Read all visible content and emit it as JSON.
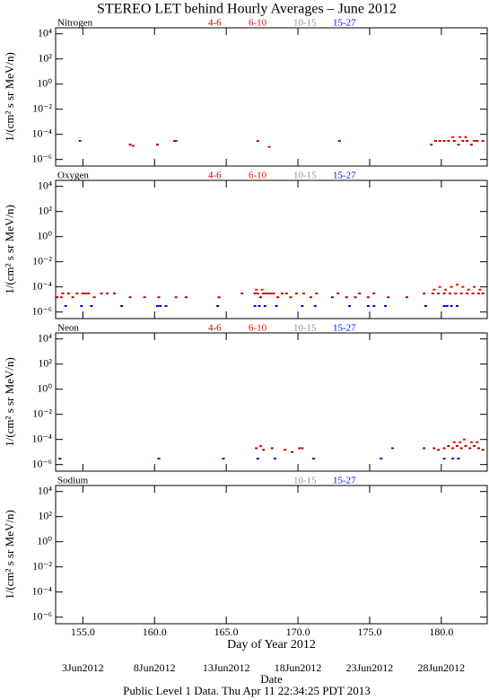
{
  "title": "STEREO LET behind Hourly Averages – June 2012",
  "footer": "Public Level 1 Data. Thu Apr 11 22:34:25 PDT 2013",
  "chart_data": [
    {
      "type": "scatter",
      "panel_label": "Nitrogen",
      "ylabel": "1/(cm² s sr MeV/n)",
      "log_y": true,
      "xlim": [
        153.1,
        183.2
      ],
      "ylim": [
        3e-07,
        30000
      ],
      "yticks": [
        {
          "value": 10000,
          "label": "10⁴"
        },
        {
          "value": 100,
          "label": "10²"
        },
        {
          "value": 1,
          "label": "10⁰"
        },
        {
          "value": 0.01,
          "label": "10⁻²"
        },
        {
          "value": 0.0001,
          "label": "10⁻⁴"
        },
        {
          "value": 1e-06,
          "label": "10⁻⁶"
        }
      ],
      "series": [
        {
          "name": "4-6",
          "color": "#b40000",
          "x": [
            154.8,
            158.3,
            160.2,
            161.4,
            161.5,
            167.2,
            172.9,
            179.3,
            179.6,
            179.9,
            180.2,
            180.5,
            180.9,
            181.2,
            181.5,
            181.8,
            182.1,
            182.5,
            182.9
          ],
          "values": [
            3e-05,
            1.5e-05,
            1.5e-05,
            3e-05,
            3e-05,
            3e-05,
            3e-05,
            1.5e-05,
            3e-05,
            3e-05,
            3e-05,
            3e-05,
            3e-05,
            1.5e-05,
            3e-05,
            3e-05,
            1.5e-05,
            3e-05,
            3e-05
          ]
        },
        {
          "name": "6-10",
          "color": "#ff0000",
          "x": [
            158.5,
            168.0,
            180.8,
            181.3,
            181.7,
            182.3
          ],
          "values": [
            1.2e-05,
            1e-05,
            6e-05,
            6e-05,
            6e-05,
            3e-05
          ]
        },
        {
          "name": "10-15",
          "color": "#909090",
          "x": [],
          "values": []
        },
        {
          "name": "15-27",
          "color": "#0000ff",
          "x": [],
          "values": []
        }
      ]
    },
    {
      "type": "scatter",
      "panel_label": "Oxygen",
      "ylabel": "1/(cm² s sr MeV/n)",
      "log_y": true,
      "xlim": [
        153.1,
        183.2
      ],
      "ylim": [
        3e-07,
        30000
      ],
      "yticks": [
        {
          "value": 10000,
          "label": "10⁴"
        },
        {
          "value": 100,
          "label": "10²"
        },
        {
          "value": 1,
          "label": "10⁰"
        },
        {
          "value": 0.01,
          "label": "10⁻²"
        },
        {
          "value": 0.0001,
          "label": "10⁻⁴"
        },
        {
          "value": 1e-06,
          "label": "10⁻⁶"
        }
      ],
      "series": [
        {
          "name": "4-6",
          "color": "#b40000",
          "x": [
            153.2,
            153.6,
            154.0,
            154.3,
            154.6,
            155.0,
            155.4,
            155.8,
            156.3,
            156.7,
            157.2,
            158.3,
            159.3,
            160.3,
            161.5,
            162.2,
            164.5,
            166.1,
            167.0,
            167.2,
            167.4,
            167.6,
            167.8,
            168.0,
            168.3,
            168.6,
            168.9,
            169.2,
            169.5,
            169.9,
            170.4,
            170.9,
            171.3,
            172.4,
            172.8,
            173.4,
            174.0,
            174.3,
            174.9,
            175.3,
            176.3,
            177.6,
            178.8,
            179.4,
            179.8,
            180.2,
            180.6,
            181.0,
            181.4,
            181.8,
            182.2,
            182.6,
            182.9
          ],
          "values": [
            1.5e-05,
            3e-05,
            3e-05,
            1.5e-05,
            3e-05,
            3e-05,
            3e-05,
            1.5e-05,
            3e-05,
            3e-05,
            3e-05,
            1.5e-05,
            1.5e-05,
            1.5e-05,
            1.5e-05,
            1.5e-05,
            1.5e-05,
            3e-05,
            3e-05,
            3e-05,
            1.5e-05,
            3e-05,
            3e-05,
            3e-05,
            3e-05,
            1.5e-05,
            3e-05,
            3e-05,
            1.5e-05,
            3e-05,
            3e-05,
            1.5e-05,
            3e-05,
            1.5e-05,
            3e-05,
            1.5e-05,
            1.5e-05,
            3e-05,
            1.5e-05,
            3e-05,
            1.5e-05,
            1.5e-05,
            3e-05,
            3e-05,
            3e-05,
            3e-05,
            3e-05,
            3e-05,
            3e-05,
            3e-05,
            3e-05,
            3e-05,
            3e-05
          ]
        },
        {
          "name": "6-10",
          "color": "#ff0000",
          "x": [
            153.5,
            155.2,
            167.1,
            167.5,
            168.2,
            179.5,
            179.9,
            180.3,
            180.7,
            181.1,
            181.5,
            181.9,
            182.3,
            182.7
          ],
          "values": [
            1.5e-05,
            3e-05,
            6e-05,
            6e-05,
            3e-05,
            6e-05,
            0.0001,
            6e-05,
            0.0001,
            0.00015,
            0.0001,
            6e-05,
            0.0001,
            6e-05
          ]
        },
        {
          "name": "10-15",
          "color": "#909090",
          "x": [],
          "values": []
        },
        {
          "name": "15-27",
          "color": "#0000ff",
          "x": [
            153.8,
            154.9,
            155.6,
            157.7,
            160.2,
            160.4,
            160.8,
            164.4,
            167.0,
            167.3,
            167.7,
            168.5,
            170.3,
            171.2,
            173.6,
            174.9,
            175.3,
            176.1,
            178.9,
            180.2,
            180.4,
            180.7,
            181.1
          ],
          "values": [
            3e-06,
            3e-06,
            3e-06,
            3e-06,
            3e-06,
            3e-06,
            3e-06,
            3e-06,
            3e-06,
            3e-06,
            3e-06,
            3e-06,
            3e-06,
            3e-06,
            3e-06,
            3e-06,
            3e-06,
            3e-06,
            3e-06,
            3e-06,
            3e-06,
            3e-06,
            3e-06
          ]
        }
      ]
    },
    {
      "type": "scatter",
      "panel_label": "Neon",
      "ylabel": "1/(cm² s sr MeV/n)",
      "log_y": true,
      "xlim": [
        153.1,
        183.2
      ],
      "ylim": [
        3e-07,
        30000
      ],
      "yticks": [
        {
          "value": 10000,
          "label": "10⁴"
        },
        {
          "value": 100,
          "label": "10²"
        },
        {
          "value": 1,
          "label": "10⁰"
        },
        {
          "value": 0.01,
          "label": "10⁻²"
        },
        {
          "value": 0.0001,
          "label": "10⁻⁴"
        },
        {
          "value": 1e-06,
          "label": "10⁻⁶"
        }
      ],
      "series": [
        {
          "name": "4-6",
          "color": "#b40000",
          "x": [
            167.1,
            167.6,
            168.2,
            169.6,
            170.1,
            170.3,
            176.6,
            178.8,
            179.5,
            179.8,
            180.2,
            180.5,
            180.8,
            181.1,
            181.4,
            181.7,
            182.0,
            182.3,
            182.6,
            182.9
          ],
          "values": [
            2e-05,
            1.5e-05,
            2e-05,
            1e-05,
            2e-05,
            2e-05,
            2e-05,
            2e-05,
            2e-05,
            1.5e-05,
            2e-05,
            3e-05,
            2e-05,
            3e-05,
            2e-05,
            3e-05,
            2e-05,
            3e-05,
            2e-05,
            1.5e-05
          ]
        },
        {
          "name": "6-10",
          "color": "#ff0000",
          "x": [
            167.4,
            169.1,
            180.9,
            181.3,
            181.6,
            182.1,
            182.5
          ],
          "values": [
            3e-05,
            1.5e-05,
            6e-05,
            6e-05,
            0.0001,
            6e-05,
            6e-05
          ]
        },
        {
          "name": "10-15",
          "color": "#909090",
          "x": [],
          "values": []
        },
        {
          "name": "15-27",
          "color": "#0000ff",
          "x": [
            153.4,
            160.3,
            164.8,
            167.2,
            168.4,
            171.1,
            175.8,
            180.2,
            180.8,
            181.2
          ],
          "values": [
            3e-06,
            3e-06,
            3e-06,
            3e-06,
            3e-06,
            3e-06,
            3e-06,
            3e-06,
            3e-06,
            3e-06
          ]
        }
      ]
    },
    {
      "type": "scatter",
      "panel_label": "Sodium",
      "ylabel": "1/(cm² s sr MeV/n)",
      "log_y": true,
      "xlim": [
        153.1,
        183.2
      ],
      "ylim": [
        3e-07,
        30000
      ],
      "yticks": [
        {
          "value": 10000,
          "label": "10⁴"
        },
        {
          "value": 100,
          "label": "10²"
        },
        {
          "value": 1,
          "label": "10⁰"
        },
        {
          "value": 0.01,
          "label": "10⁻²"
        },
        {
          "value": 0.0001,
          "label": "10⁻⁴"
        },
        {
          "value": 1e-06,
          "label": "10⁻⁶"
        }
      ],
      "series": [
        {
          "name": "10-15",
          "color": "#909090",
          "x": [],
          "values": []
        },
        {
          "name": "15-27",
          "color": "#0000ff",
          "x": [],
          "values": []
        }
      ],
      "xlabel": "Day of Year 2012",
      "xticks": [
        {
          "value": 155,
          "label": "155.0"
        },
        {
          "value": 160,
          "label": "160.0"
        },
        {
          "value": 165,
          "label": "165.0"
        },
        {
          "value": 170,
          "label": "170.0"
        },
        {
          "value": 175,
          "label": "175.0"
        },
        {
          "value": 180,
          "label": "180.0"
        }
      ],
      "date_label": "Date",
      "date_ticks": [
        {
          "value": 155,
          "label": "3Jun2012"
        },
        {
          "value": 160,
          "label": "8Jun2012"
        },
        {
          "value": 165,
          "label": "13Jun2012"
        },
        {
          "value": 170,
          "label": "18Jun2012"
        },
        {
          "value": 175,
          "label": "23Jun2012"
        },
        {
          "value": 180,
          "label": "28Jun2012"
        }
      ]
    }
  ]
}
